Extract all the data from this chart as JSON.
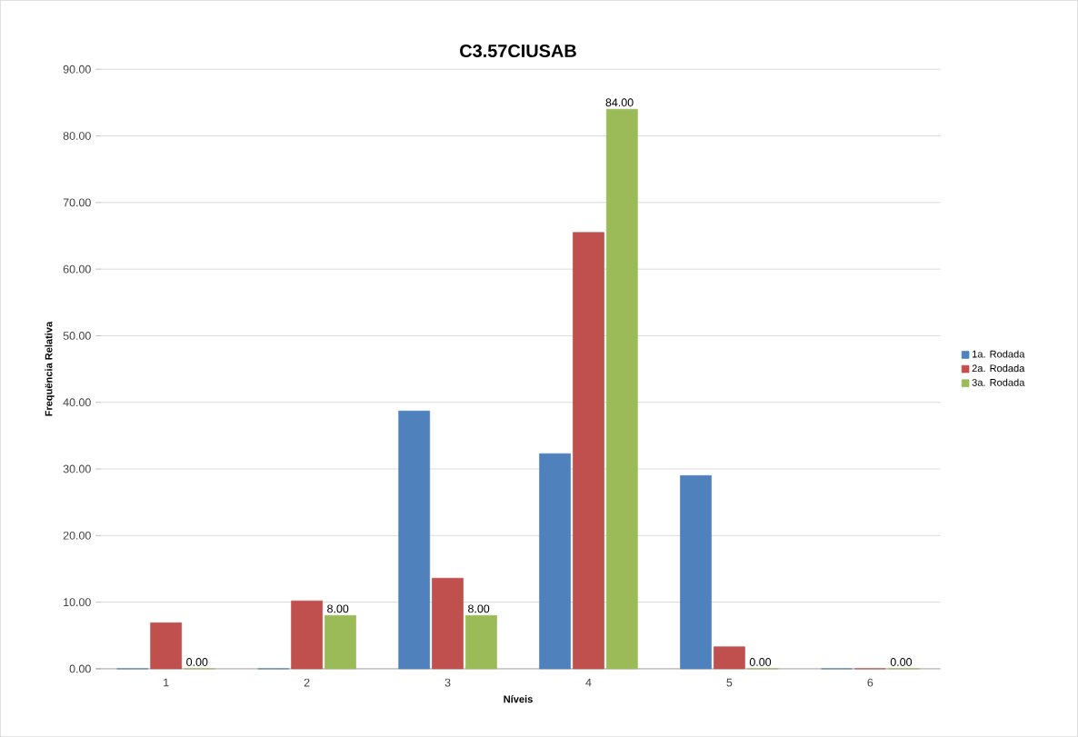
{
  "chart_data": {
    "type": "bar",
    "title": "C3.57CIUSAB",
    "xlabel": "Níveis",
    "ylabel": "Frequëncia Relativa",
    "categories": [
      "1",
      "2",
      "3",
      "4",
      "5",
      "6"
    ],
    "series": [
      {
        "name": "1a. Rodada",
        "color": "#4f81bd",
        "values": [
          0,
          0,
          38.7,
          32.3,
          29.0,
          0
        ]
      },
      {
        "name": "2a. Rodada",
        "color": "#c0504d",
        "values": [
          6.9,
          10.2,
          13.6,
          65.5,
          3.3,
          0
        ]
      },
      {
        "name": "3a. Rodada",
        "color": "#9bbb59",
        "values": [
          0,
          8,
          8,
          84,
          0,
          0
        ],
        "value_labels": [
          "0.00",
          "8.00",
          "8.00",
          "84.00",
          "0.00",
          "0.00"
        ]
      }
    ],
    "ylim": [
      0,
      90
    ],
    "yticks": [
      {
        "value": 0,
        "label": "0.00"
      },
      {
        "value": 10,
        "label": "10.00"
      },
      {
        "value": 20,
        "label": "20.00"
      },
      {
        "value": 30,
        "label": "30.00"
      },
      {
        "value": 40,
        "label": "40.00"
      },
      {
        "value": 50,
        "label": "50.00"
      },
      {
        "value": 60,
        "label": "60.00"
      },
      {
        "value": 70,
        "label": "70.00"
      },
      {
        "value": 80,
        "label": "80.00"
      },
      {
        "value": 90,
        "label": "90.00"
      }
    ],
    "grid": "y",
    "legend": "right"
  }
}
